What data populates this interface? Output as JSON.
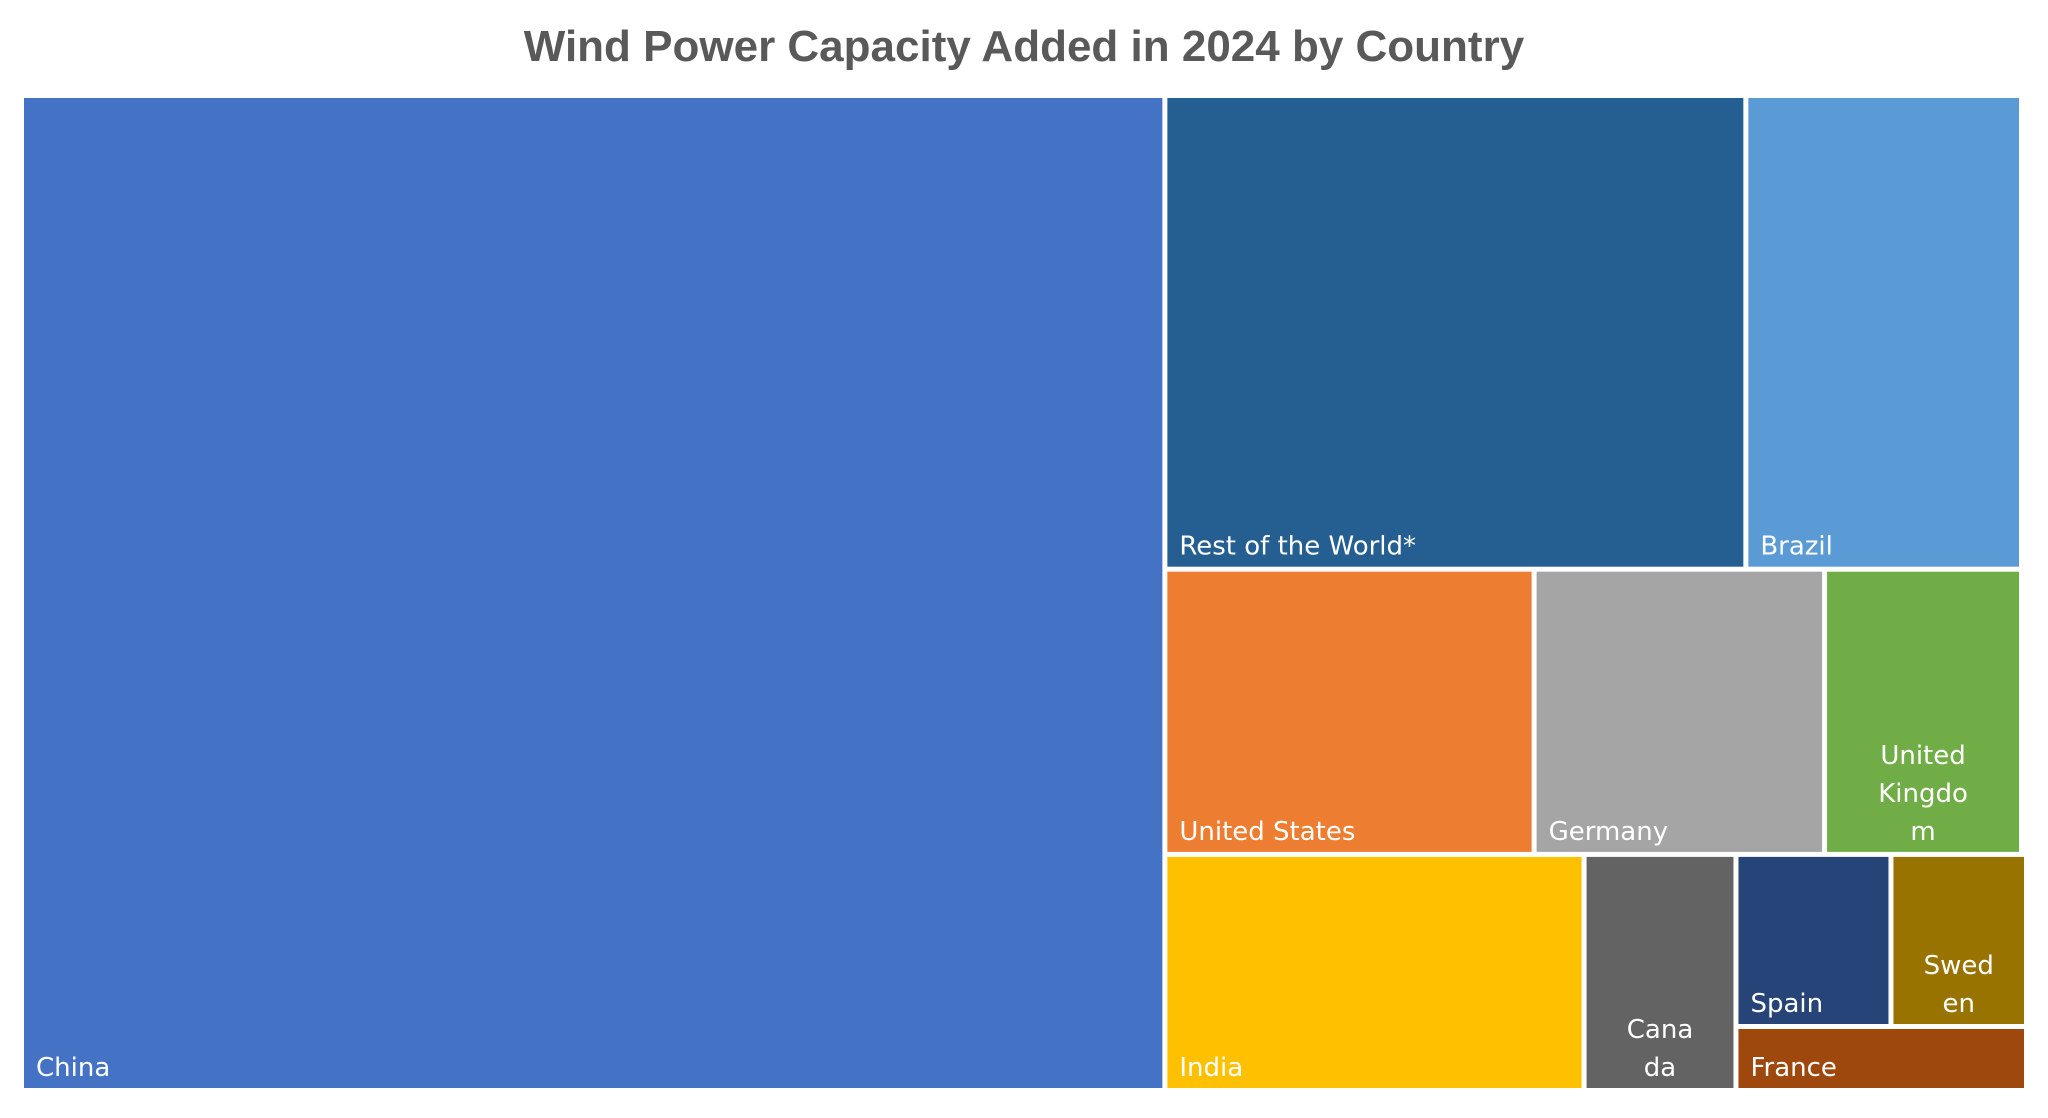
{
  "chart_data": {
    "type": "treemap",
    "title": "Wind Power Capacity Added in 2024 by Country",
    "unit": "",
    "items": [
      {
        "name": "China",
        "value": 79.8,
        "color": "#4472C4",
        "label_lines": [
          "China"
        ]
      },
      {
        "name": "Rest of the World*",
        "value": 19.6,
        "color": "#255E91",
        "label_lines": [
          "Rest of the World*"
        ]
      },
      {
        "name": "Brazil",
        "value": 9.3,
        "color": "#5B9BD5",
        "label_lines": [
          "Brazil"
        ]
      },
      {
        "name": "United States",
        "value": 7.5,
        "color": "#ED7D31",
        "label_lines": [
          "United States"
        ]
      },
      {
        "name": "Germany",
        "value": 5.9,
        "color": "#A5A5A5",
        "label_lines": [
          "Germany"
        ]
      },
      {
        "name": "United Kingdom",
        "value": 4.0,
        "color": "#70AD47",
        "label_lines": [
          "United",
          "Kingdo",
          "m"
        ]
      },
      {
        "name": "India",
        "value": 6.9,
        "color": "#FFC000",
        "label_lines": [
          "India"
        ]
      },
      {
        "name": "Canada",
        "value": 2.5,
        "color": "#636363",
        "label_lines": [
          "Cana",
          "da"
        ]
      },
      {
        "name": "Spain",
        "value": 1.9,
        "color": "#264478",
        "label_lines": [
          "Spain"
        ]
      },
      {
        "name": "Sweden",
        "value": 1.6,
        "color": "#997300",
        "label_lines": [
          "Swed",
          "en"
        ]
      },
      {
        "name": "France",
        "value": 1.2,
        "color": "#9E480E",
        "label_lines": [
          "France"
        ]
      }
    ]
  }
}
